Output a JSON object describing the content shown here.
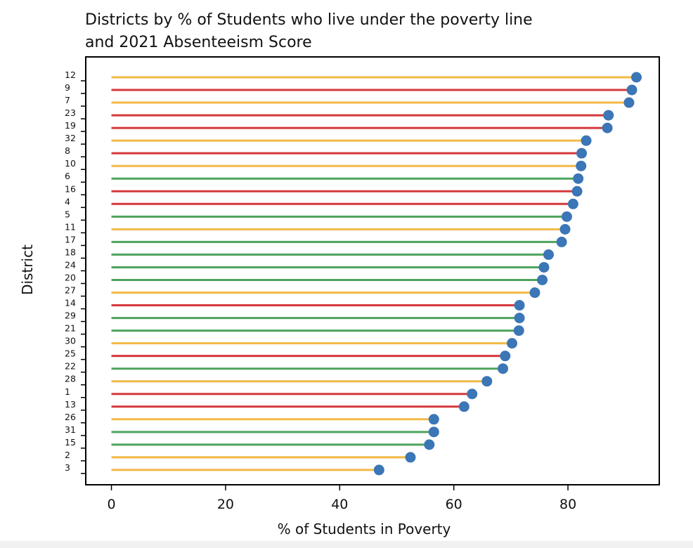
{
  "chart_data": {
    "type": "lollipop",
    "title_line1": "Districts by % of Students who live under the poverty line",
    "title_line2": "and 2021 Absenteeism Score",
    "xlabel": "% of Students in Poverty",
    "ylabel": "District",
    "xlim": [
      -4.5,
      96
    ],
    "xticks": [
      0,
      20,
      40,
      60,
      80
    ],
    "grid": false,
    "colors": {
      "red": "#d5383b",
      "yellow": "#f3b945",
      "green": "#4ea35c",
      "marker": "#3b76b6",
      "axis": "#000000"
    },
    "points": [
      {
        "district": "12",
        "value": 92.0,
        "color": "yellow"
      },
      {
        "district": "9",
        "value": 91.2,
        "color": "red"
      },
      {
        "district": "7",
        "value": 90.7,
        "color": "yellow"
      },
      {
        "district": "23",
        "value": 87.1,
        "color": "red"
      },
      {
        "district": "19",
        "value": 86.9,
        "color": "red"
      },
      {
        "district": "32",
        "value": 83.2,
        "color": "yellow"
      },
      {
        "district": "8",
        "value": 82.4,
        "color": "red"
      },
      {
        "district": "10",
        "value": 82.3,
        "color": "yellow"
      },
      {
        "district": "6",
        "value": 81.8,
        "color": "green"
      },
      {
        "district": "16",
        "value": 81.6,
        "color": "red"
      },
      {
        "district": "4",
        "value": 80.9,
        "color": "red"
      },
      {
        "district": "5",
        "value": 79.8,
        "color": "green"
      },
      {
        "district": "11",
        "value": 79.5,
        "color": "yellow"
      },
      {
        "district": "17",
        "value": 78.9,
        "color": "green"
      },
      {
        "district": "18",
        "value": 76.6,
        "color": "green"
      },
      {
        "district": "24",
        "value": 75.8,
        "color": "green"
      },
      {
        "district": "20",
        "value": 75.5,
        "color": "green"
      },
      {
        "district": "27",
        "value": 74.2,
        "color": "yellow"
      },
      {
        "district": "14",
        "value": 71.5,
        "color": "red"
      },
      {
        "district": "29",
        "value": 71.5,
        "color": "green"
      },
      {
        "district": "21",
        "value": 71.4,
        "color": "green"
      },
      {
        "district": "30",
        "value": 70.2,
        "color": "yellow"
      },
      {
        "district": "25",
        "value": 69.0,
        "color": "red"
      },
      {
        "district": "22",
        "value": 68.6,
        "color": "green"
      },
      {
        "district": "28",
        "value": 65.8,
        "color": "yellow"
      },
      {
        "district": "1",
        "value": 63.2,
        "color": "red"
      },
      {
        "district": "13",
        "value": 61.8,
        "color": "red"
      },
      {
        "district": "26",
        "value": 56.5,
        "color": "yellow"
      },
      {
        "district": "31",
        "value": 56.5,
        "color": "green"
      },
      {
        "district": "15",
        "value": 55.7,
        "color": "green"
      },
      {
        "district": "2",
        "value": 52.4,
        "color": "yellow"
      },
      {
        "district": "3",
        "value": 46.9,
        "color": "yellow"
      }
    ]
  }
}
